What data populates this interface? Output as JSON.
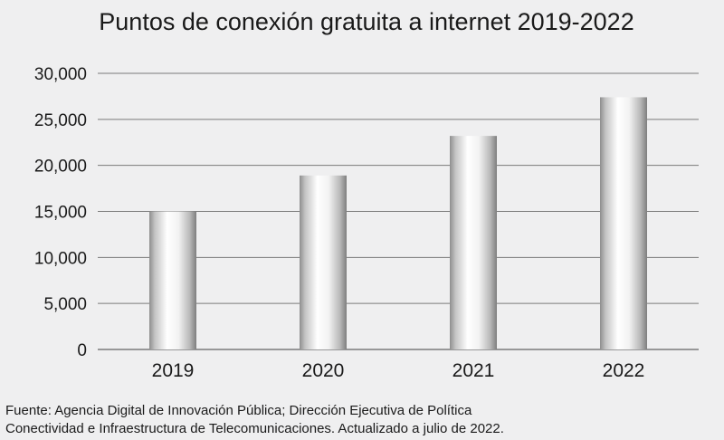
{
  "chart_data": {
    "type": "bar",
    "title": "Puntos de conexión gratuita a internet 2019-2022",
    "categories": [
      "2019",
      "2020",
      "2021",
      "2022"
    ],
    "values": [
      15000,
      18900,
      23200,
      27400
    ],
    "ylim": [
      0,
      30000
    ],
    "yticks": [
      0,
      5000,
      10000,
      15000,
      20000,
      25000,
      30000
    ],
    "ytick_labels": [
      "0",
      "5,000",
      "10,000",
      "15,000",
      "20,000",
      "25,000",
      "30,000"
    ],
    "xlabel": "",
    "ylabel": "",
    "grid": true,
    "legend": "none"
  },
  "source": {
    "line1": "Fuente: Agencia Digital de Innovación Pública; Dirección Ejecutiva de Política",
    "line2": "Conectividad e Infraestructura de Telecomunicaciones. Actualizado a julio de 2022."
  },
  "colors": {
    "background": "#efeff0",
    "grid": "#7a7a7a",
    "bar_dark": "#8c8c8c",
    "bar_light": "#ffffff"
  }
}
